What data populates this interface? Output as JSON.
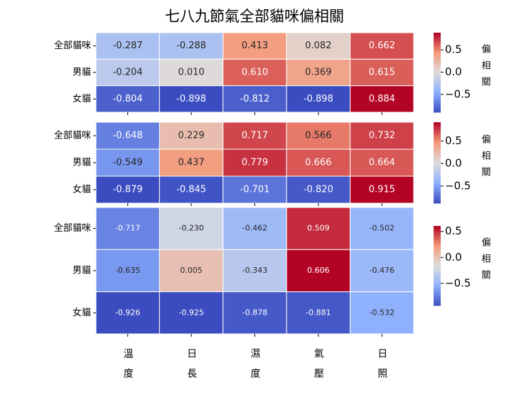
{
  "chart_data": [
    {
      "type": "heatmap",
      "title": "七八九節氣全部貓咪偏相關",
      "rows": [
        "全部貓咪",
        "男貓",
        "女貓"
      ],
      "values": [
        [
          -0.287,
          -0.288,
          0.413,
          0.082,
          0.662
        ],
        [
          -0.204,
          0.01,
          0.61,
          0.369,
          0.615
        ],
        [
          -0.804,
          -0.898,
          -0.812,
          -0.898,
          0.884
        ]
      ],
      "value_labels": [
        [
          "-0.287",
          "-0.288",
          "0.413",
          "0.082",
          "0.662"
        ],
        [
          "-0.204",
          "0.010",
          "0.610",
          "0.369",
          "0.615"
        ],
        [
          "-0.804",
          "-0.898",
          "-0.812",
          "-0.898",
          "0.884"
        ]
      ],
      "colorbar_label": "偏相關",
      "clim": [
        -0.898,
        0.884
      ],
      "cticks": [
        0.5,
        {
          "value": 0,
          "label": "0.0"
        },
        {
          "value": -0.5,
          "label": "−0.5"
        }
      ]
    },
    {
      "type": "heatmap",
      "rows": [
        "全部貓咪",
        "男貓",
        "女貓"
      ],
      "values": [
        [
          -0.648,
          0.229,
          0.717,
          0.566,
          0.732
        ],
        [
          -0.549,
          0.437,
          0.779,
          0.666,
          0.664
        ],
        [
          -0.879,
          -0.845,
          -0.701,
          -0.82,
          0.915
        ]
      ],
      "value_labels": [
        [
          "-0.648",
          "0.229",
          "0.717",
          "0.566",
          "0.732"
        ],
        [
          "-0.549",
          "0.437",
          "0.779",
          "0.666",
          "0.664"
        ],
        [
          "-0.879",
          "-0.845",
          "-0.701",
          "-0.820",
          "0.915"
        ]
      ],
      "colorbar_label": "偏相關",
      "clim": [
        -0.879,
        0.915
      ],
      "cticks": [
        0.5,
        {
          "value": 0,
          "label": "0.0"
        },
        {
          "value": -0.5,
          "label": "−0.5"
        }
      ]
    },
    {
      "type": "heatmap",
      "rows": [
        "全部貓咪",
        "男貓",
        "女貓"
      ],
      "columns": [
        "溫度",
        "日長",
        "濕度",
        "氣壓",
        "日照"
      ],
      "values": [
        [
          -0.717,
          -0.23,
          -0.462,
          0.509,
          -0.502
        ],
        [
          -0.635,
          0.005,
          -0.343,
          0.606,
          -0.476
        ],
        [
          -0.926,
          -0.925,
          -0.878,
          -0.881,
          -0.532
        ]
      ],
      "value_labels": [
        [
          "-0.717",
          "-0.230",
          "-0.462",
          "0.509",
          "-0.502"
        ],
        [
          "-0.635",
          "0.005",
          "-0.343",
          "0.606",
          "-0.476"
        ],
        [
          "-0.926",
          "-0.925",
          "-0.878",
          "-0.881",
          "-0.532"
        ]
      ],
      "colorbar_label": "偏相關",
      "clim": [
        -0.926,
        0.606
      ],
      "cticks": [
        0.5,
        {
          "value": 0,
          "label": "0.0"
        },
        {
          "value": -0.5,
          "label": "−0.5"
        }
      ]
    }
  ]
}
